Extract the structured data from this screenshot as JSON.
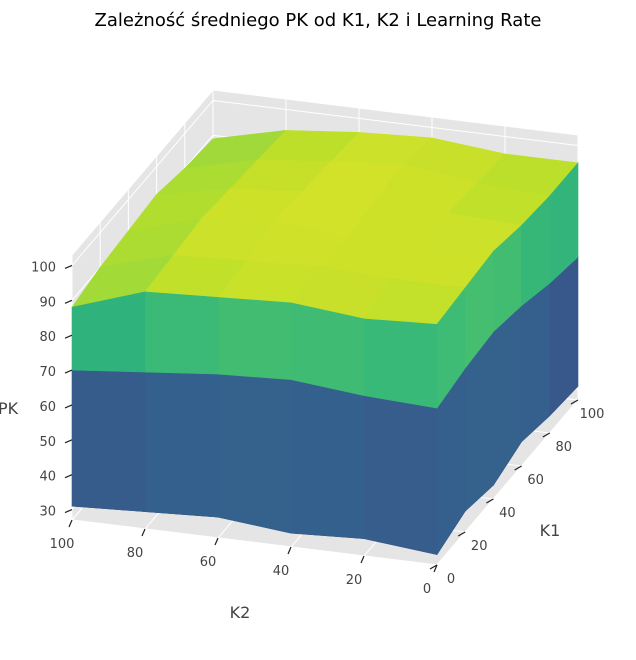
{
  "chart_data": {
    "type": "surface3d",
    "title": "Zależność średniego PK od K1, K2 i Learning Rate",
    "xlabel": "K1",
    "ylabel": "K2",
    "zlabel": "PK",
    "x_ticks": [
      "0",
      "20",
      "40",
      "60",
      "80",
      "100"
    ],
    "y_ticks": [
      "100",
      "80",
      "60",
      "40",
      "20",
      "0"
    ],
    "z_ticks": [
      "30",
      "40",
      "50",
      "60",
      "70",
      "80",
      "90",
      "100"
    ],
    "xlim": [
      0,
      100
    ],
    "ylim": [
      0,
      100
    ],
    "zlim": [
      27,
      103
    ],
    "colormap": "viridis",
    "grid": true,
    "pane_color": "#e5e5e5",
    "surfaces": [
      {
        "level": "top",
        "grid_x": [
          0,
          20,
          40,
          60,
          80,
          100
        ],
        "grid_y": [
          0,
          20,
          40,
          60,
          80,
          100
        ],
        "z": [
          [
            96,
            97,
            98,
            96,
            95,
            95
          ],
          [
            95,
            97,
            98,
            97,
            96,
            95
          ],
          [
            97,
            98,
            97,
            98,
            99,
            97
          ],
          [
            96,
            97,
            99,
            98,
            97,
            96
          ],
          [
            95,
            96,
            97,
            96,
            95,
            94
          ],
          [
            88,
            90,
            91,
            92,
            90,
            89
          ]
        ]
      },
      {
        "level": "middle",
        "grid_x": [
          0,
          20,
          40,
          60,
          80,
          100
        ],
        "grid_y": [
          0,
          20,
          40,
          60,
          80,
          100
        ],
        "z": [
          [
            72,
            74,
            75,
            73,
            70,
            68
          ],
          [
            73,
            76,
            77,
            75,
            72,
            70
          ],
          [
            75,
            77,
            78,
            76,
            74,
            72
          ],
          [
            74,
            76,
            77,
            75,
            73,
            71
          ],
          [
            72,
            74,
            75,
            74,
            72,
            70
          ],
          [
            70,
            72,
            73,
            72,
            71,
            69
          ]
        ]
      },
      {
        "level": "bottom",
        "grid_x": [
          0,
          20,
          40,
          60,
          80,
          100
        ],
        "grid_y": [
          0,
          20,
          40,
          60,
          80,
          100
        ],
        "z": [
          [
            30,
            33,
            31,
            34,
            32,
            31
          ],
          [
            32,
            35,
            33,
            36,
            34,
            32
          ],
          [
            31,
            34,
            37,
            35,
            33,
            31
          ],
          [
            33,
            36,
            34,
            38,
            35,
            33
          ],
          [
            32,
            34,
            33,
            35,
            34,
            32
          ],
          [
            31,
            33,
            32,
            34,
            33,
            31
          ]
        ]
      }
    ]
  }
}
